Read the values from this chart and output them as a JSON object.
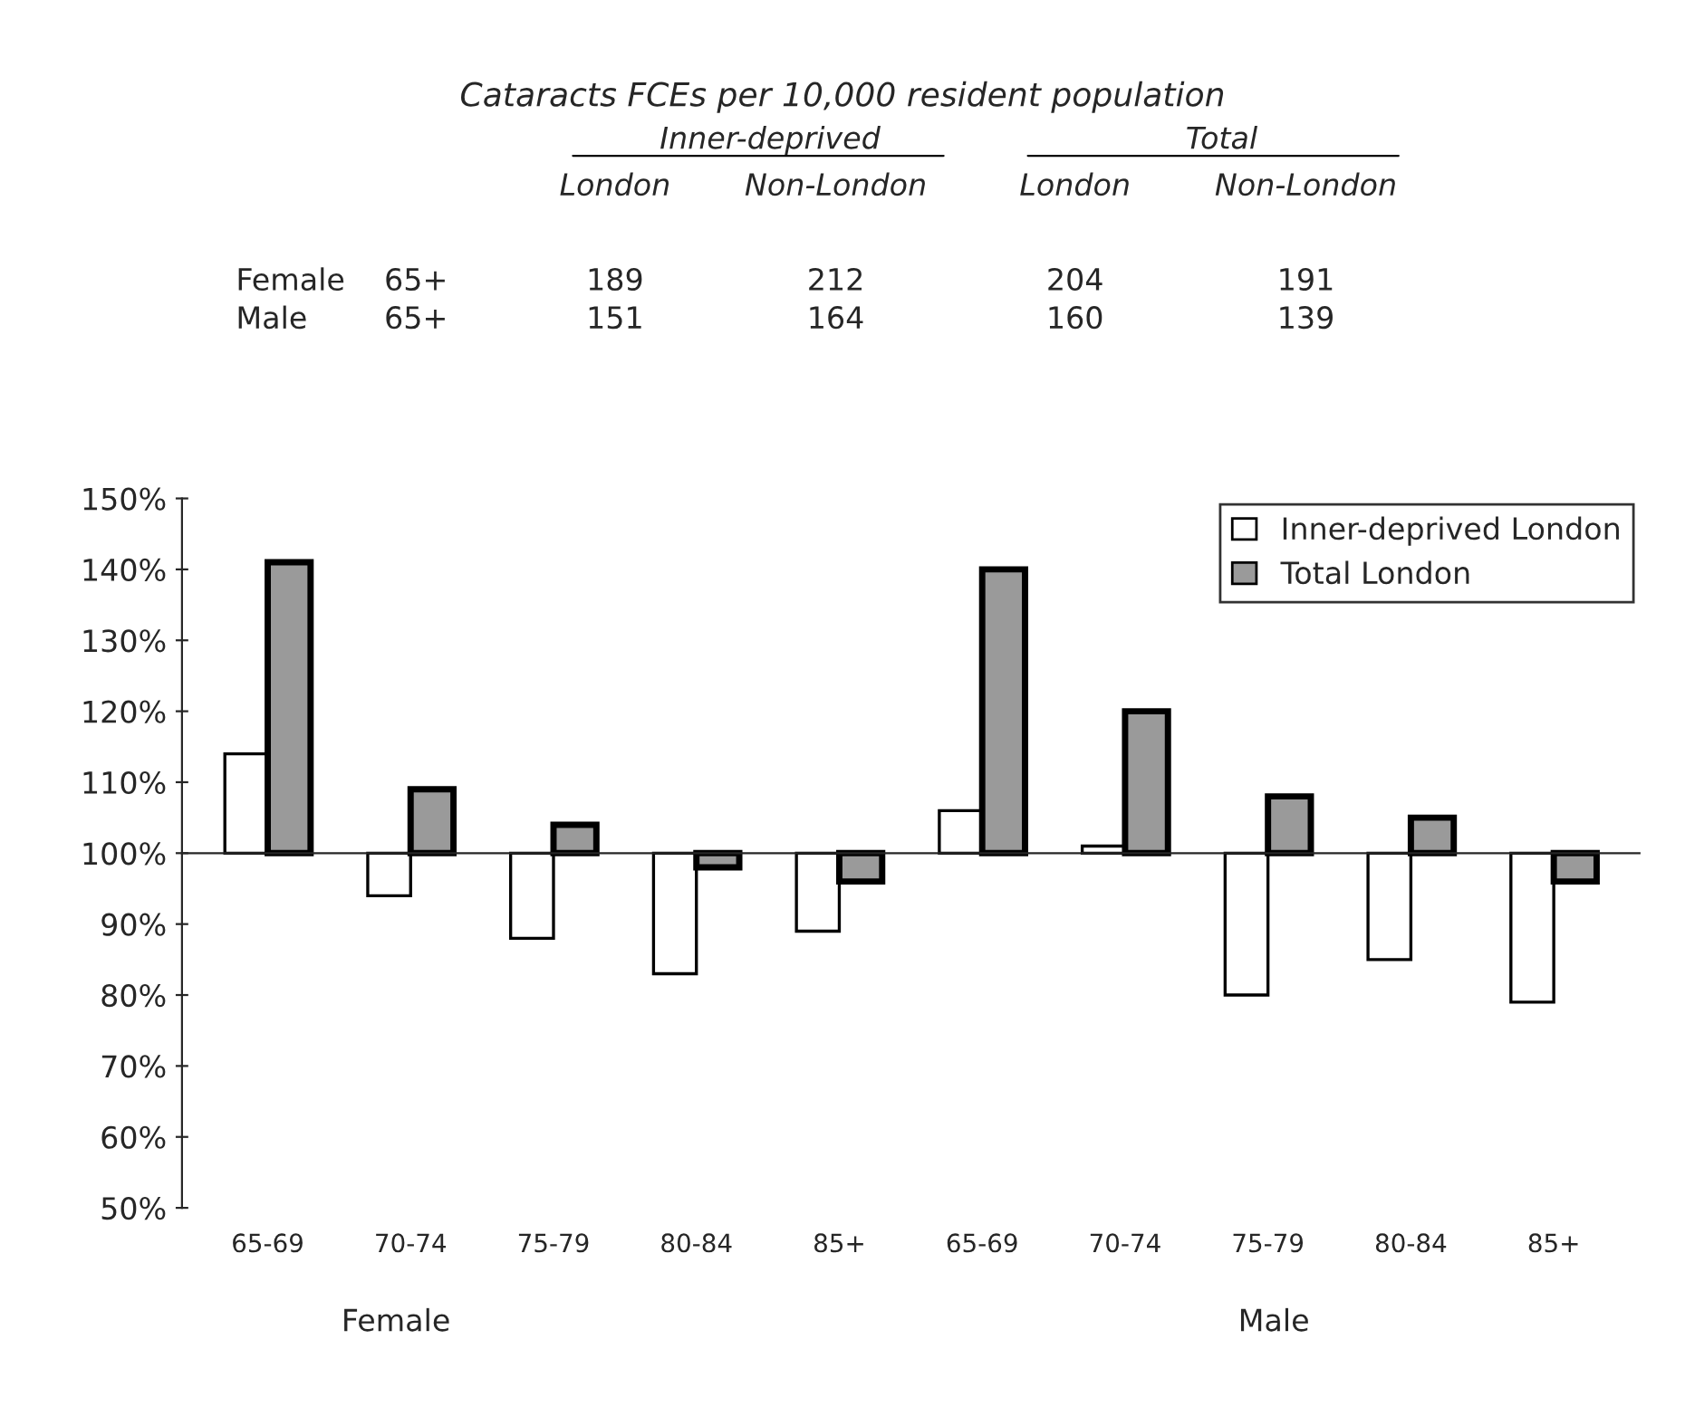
{
  "chart_data": {
    "type": "bar",
    "title": "Cataracts FCEs per 10,000 resident population",
    "categories": [
      "65-69",
      "70-74",
      "75-79",
      "80-84",
      "85+",
      "65-69",
      "70-74",
      "75-79",
      "80-84",
      "85+"
    ],
    "series": [
      {
        "name": "Inner-deprived London",
        "color": "#ffffff",
        "base": [
          100,
          100,
          100,
          100,
          100,
          100,
          100,
          100,
          100,
          100
        ],
        "values": [
          14,
          -6,
          -12,
          -17,
          -11,
          6,
          1,
          -20,
          -15,
          -21
        ]
      },
      {
        "name": "Total London",
        "color": "#9a9a9a",
        "base": [
          100,
          100,
          100,
          100,
          100,
          100,
          100,
          100,
          100,
          100
        ],
        "values": [
          41,
          9,
          4,
          -2,
          -4,
          40,
          20,
          8,
          5,
          -4
        ]
      }
    ],
    "ylim": [
      50,
      150
    ],
    "yticks": [
      {
        "value": 50,
        "label": "50%"
      },
      {
        "value": 60,
        "label": "60%"
      },
      {
        "value": 70,
        "label": "70%"
      },
      {
        "value": 80,
        "label": "80%"
      },
      {
        "value": 90,
        "label": "90%"
      },
      {
        "value": 100,
        "label": "100%"
      },
      {
        "value": 110,
        "label": "110%"
      },
      {
        "value": 120,
        "label": "120%"
      },
      {
        "value": 130,
        "label": "130%"
      },
      {
        "value": 140,
        "label": "140%"
      },
      {
        "value": 150,
        "label": "150%"
      }
    ],
    "legend": "top right",
    "annotations": [
      "Inner-deprived",
      "Total",
      "London",
      "Non-London",
      "London",
      "Non-London",
      "Female",
      "65+",
      "189",
      "212",
      "204",
      "191",
      "Male",
      "65+",
      "151",
      "164",
      "160",
      "139",
      "Female",
      "Male"
    ]
  }
}
